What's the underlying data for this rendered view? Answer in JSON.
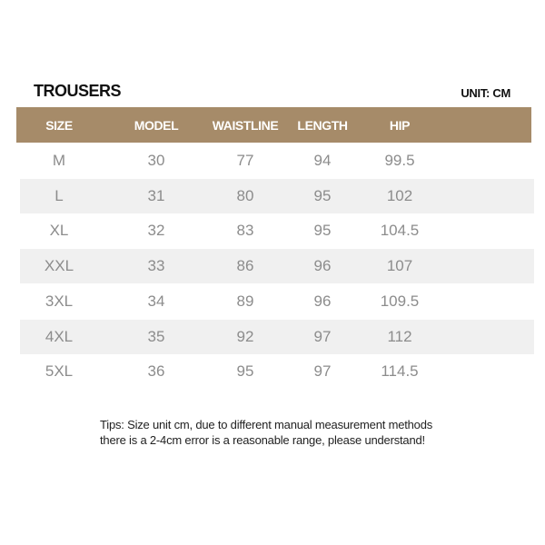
{
  "title": "TROUSERS",
  "unit": "UNIT: CM",
  "colors": {
    "header_bg": "#a68b69",
    "alt_row_bg": "#f0f0f0",
    "cell_text": "#8c8c8c"
  },
  "table": {
    "headers": [
      "SIZE",
      "MODEL",
      "WAISTLINE",
      "LENGTH",
      "HIP"
    ],
    "rows": [
      [
        "M",
        "30",
        "77",
        "94",
        "99.5"
      ],
      [
        "L",
        "31",
        "80",
        "95",
        "102"
      ],
      [
        "XL",
        "32",
        "83",
        "95",
        "104.5"
      ],
      [
        "XXL",
        "33",
        "86",
        "96",
        "107"
      ],
      [
        "3XL",
        "34",
        "89",
        "96",
        "109.5"
      ],
      [
        "4XL",
        "35",
        "92",
        "97",
        "112"
      ],
      [
        "5XL",
        "36",
        "95",
        "97",
        "114.5"
      ]
    ]
  },
  "tips": {
    "line1": "Tips: Size unit cm, due to different manual measurement methods",
    "line2": "there is a 2-4cm error is a reasonable range, please understand!"
  }
}
